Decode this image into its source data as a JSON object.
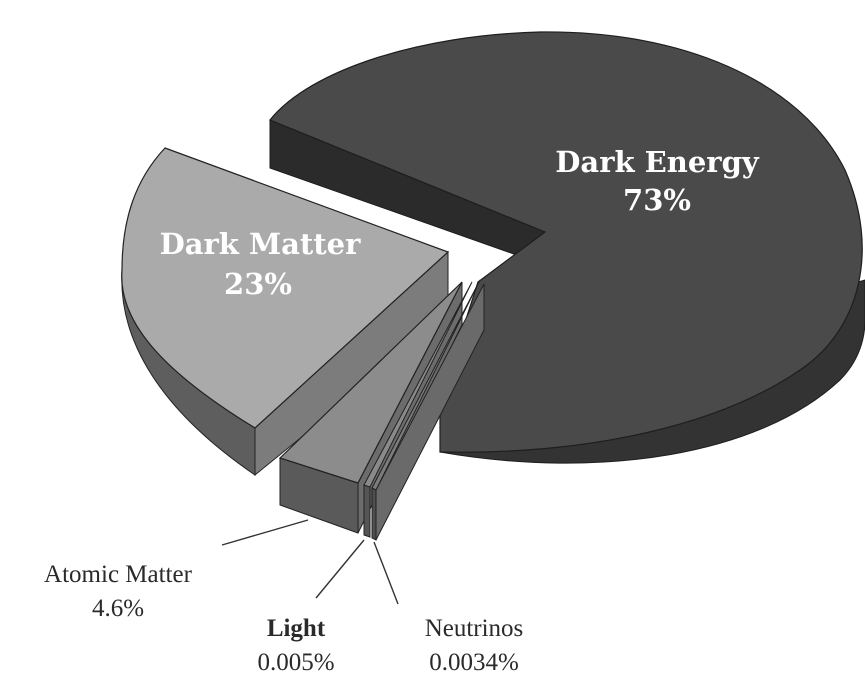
{
  "chart_data": {
    "type": "pie",
    "style": "3d-exploded",
    "slices": [
      {
        "label": "Dark Energy",
        "value_text": "73%",
        "value": 73,
        "color": "#4a4a4a",
        "side_color": "#2e2e2e"
      },
      {
        "label": "Dark Matter",
        "value_text": "23%",
        "value": 23,
        "color": "#aaaaaa",
        "side_color": "#5e5e5e"
      },
      {
        "label": "Atomic Matter",
        "value_text": "4.6%",
        "value": 4.6,
        "color": "#8c8c8c",
        "side_color": "#595959"
      },
      {
        "label": "Light",
        "value_text": "0.005%",
        "value": 0.005,
        "color": "#8a8a8a",
        "side_color": "#555555"
      },
      {
        "label": "Neutrinos",
        "value_text": "0.0034%",
        "value": 0.0034,
        "color": "#7c7c7c",
        "side_color": "#4f4f4f"
      }
    ]
  }
}
